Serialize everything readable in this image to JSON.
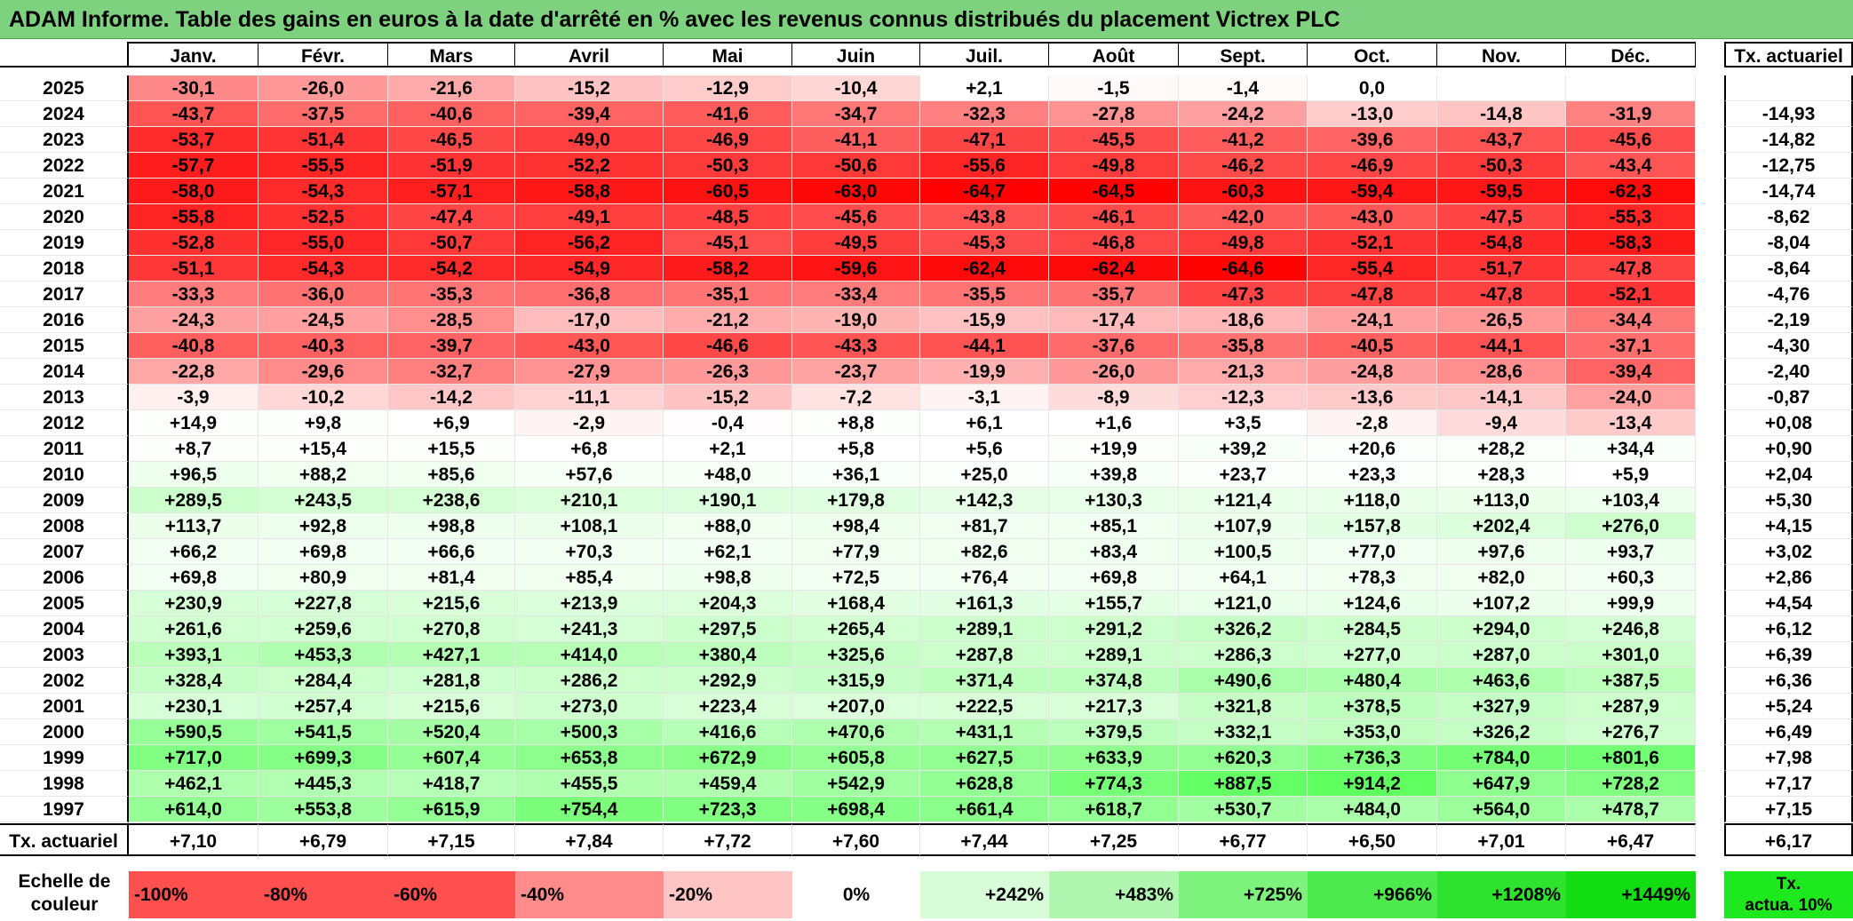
{
  "title": "ADAM Informe. Table des gains en euros à la date d'arrêté en % avec les revenus connus distribués du placement Victrex PLC",
  "months": [
    "Janv.",
    "Févr.",
    "Mars",
    "Avril",
    "Mai",
    "Juin",
    "Juil.",
    "Août",
    "Sept.",
    "Oct.",
    "Nov.",
    "Déc."
  ],
  "tx_header": "Tx. actuariel",
  "rows": [
    {
      "year": "2025",
      "values": [
        "-30,1",
        "-26,0",
        "-21,6",
        "-15,2",
        "-12,9",
        "-10,4",
        "+2,1",
        "-1,5",
        "-1,4",
        "0,0",
        "",
        ""
      ],
      "tx": ""
    },
    {
      "year": "2024",
      "values": [
        "-43,7",
        "-37,5",
        "-40,6",
        "-39,4",
        "-41,6",
        "-34,7",
        "-32,3",
        "-27,8",
        "-24,2",
        "-13,0",
        "-14,8",
        "-31,9"
      ],
      "tx": "-14,93"
    },
    {
      "year": "2023",
      "values": [
        "-53,7",
        "-51,4",
        "-46,5",
        "-49,0",
        "-46,9",
        "-41,1",
        "-47,1",
        "-45,5",
        "-41,2",
        "-39,6",
        "-43,7",
        "-45,6"
      ],
      "tx": "-14,82"
    },
    {
      "year": "2022",
      "values": [
        "-57,7",
        "-55,5",
        "-51,9",
        "-52,2",
        "-50,3",
        "-50,6",
        "-55,6",
        "-49,8",
        "-46,2",
        "-46,9",
        "-50,3",
        "-43,4"
      ],
      "tx": "-12,75"
    },
    {
      "year": "2021",
      "values": [
        "-58,0",
        "-54,3",
        "-57,1",
        "-58,8",
        "-60,5",
        "-63,0",
        "-64,7",
        "-64,5",
        "-60,3",
        "-59,4",
        "-59,5",
        "-62,3"
      ],
      "tx": "-14,74"
    },
    {
      "year": "2020",
      "values": [
        "-55,8",
        "-52,5",
        "-47,4",
        "-49,1",
        "-48,5",
        "-45,6",
        "-43,8",
        "-46,1",
        "-42,0",
        "-43,0",
        "-47,5",
        "-55,3"
      ],
      "tx": "-8,62"
    },
    {
      "year": "2019",
      "values": [
        "-52,8",
        "-55,0",
        "-50,7",
        "-56,2",
        "-45,1",
        "-49,5",
        "-45,3",
        "-46,8",
        "-49,8",
        "-52,1",
        "-54,8",
        "-58,3"
      ],
      "tx": "-8,04"
    },
    {
      "year": "2018",
      "values": [
        "-51,1",
        "-54,3",
        "-54,2",
        "-54,9",
        "-58,2",
        "-59,6",
        "-62,4",
        "-62,4",
        "-64,6",
        "-55,4",
        "-51,7",
        "-47,8"
      ],
      "tx": "-8,64"
    },
    {
      "year": "2017",
      "values": [
        "-33,3",
        "-36,0",
        "-35,3",
        "-36,8",
        "-35,1",
        "-33,4",
        "-35,5",
        "-35,7",
        "-47,3",
        "-47,8",
        "-47,8",
        "-52,1"
      ],
      "tx": "-4,76"
    },
    {
      "year": "2016",
      "values": [
        "-24,3",
        "-24,5",
        "-28,5",
        "-17,0",
        "-21,2",
        "-19,0",
        "-15,9",
        "-17,4",
        "-18,6",
        "-24,1",
        "-26,5",
        "-34,4"
      ],
      "tx": "-2,19"
    },
    {
      "year": "2015",
      "values": [
        "-40,8",
        "-40,3",
        "-39,7",
        "-43,0",
        "-46,6",
        "-43,3",
        "-44,1",
        "-37,6",
        "-35,8",
        "-40,5",
        "-44,1",
        "-37,1"
      ],
      "tx": "-4,30"
    },
    {
      "year": "2014",
      "values": [
        "-22,8",
        "-29,6",
        "-32,7",
        "-27,9",
        "-26,3",
        "-23,7",
        "-19,9",
        "-26,0",
        "-21,3",
        "-24,8",
        "-28,6",
        "-39,4"
      ],
      "tx": "-2,40"
    },
    {
      "year": "2013",
      "values": [
        "-3,9",
        "-10,2",
        "-14,2",
        "-11,1",
        "-15,2",
        "-7,2",
        "-3,1",
        "-8,9",
        "-12,3",
        "-13,6",
        "-14,1",
        "-24,0"
      ],
      "tx": "-0,87"
    },
    {
      "year": "2012",
      "values": [
        "+14,9",
        "+9,8",
        "+6,9",
        "-2,9",
        "-0,4",
        "+8,8",
        "+6,1",
        "+1,6",
        "+3,5",
        "-2,8",
        "-9,4",
        "-13,4"
      ],
      "tx": "+0,08"
    },
    {
      "year": "2011",
      "values": [
        "+8,7",
        "+15,4",
        "+15,5",
        "+6,8",
        "+2,1",
        "+5,8",
        "+5,6",
        "+19,9",
        "+39,2",
        "+20,6",
        "+28,2",
        "+34,4"
      ],
      "tx": "+0,90"
    },
    {
      "year": "2010",
      "values": [
        "+96,5",
        "+88,2",
        "+85,6",
        "+57,6",
        "+48,0",
        "+36,1",
        "+25,0",
        "+39,8",
        "+23,7",
        "+23,3",
        "+28,3",
        "+5,9"
      ],
      "tx": "+2,04"
    },
    {
      "year": "2009",
      "values": [
        "+289,5",
        "+243,5",
        "+238,6",
        "+210,1",
        "+190,1",
        "+179,8",
        "+142,3",
        "+130,3",
        "+121,4",
        "+118,0",
        "+113,0",
        "+103,4"
      ],
      "tx": "+5,30"
    },
    {
      "year": "2008",
      "values": [
        "+113,7",
        "+92,8",
        "+98,8",
        "+108,1",
        "+88,0",
        "+98,4",
        "+81,7",
        "+85,1",
        "+107,9",
        "+157,8",
        "+202,4",
        "+276,0"
      ],
      "tx": "+4,15"
    },
    {
      "year": "2007",
      "values": [
        "+66,2",
        "+69,8",
        "+66,6",
        "+70,3",
        "+62,1",
        "+77,9",
        "+82,6",
        "+83,4",
        "+100,5",
        "+77,0",
        "+97,6",
        "+93,7"
      ],
      "tx": "+3,02"
    },
    {
      "year": "2006",
      "values": [
        "+69,8",
        "+80,9",
        "+81,4",
        "+85,4",
        "+98,8",
        "+72,5",
        "+76,4",
        "+69,8",
        "+64,1",
        "+78,3",
        "+82,0",
        "+60,3"
      ],
      "tx": "+2,86"
    },
    {
      "year": "2005",
      "values": [
        "+230,9",
        "+227,8",
        "+215,6",
        "+213,9",
        "+204,3",
        "+168,4",
        "+161,3",
        "+155,7",
        "+121,0",
        "+124,6",
        "+107,2",
        "+99,9"
      ],
      "tx": "+4,54"
    },
    {
      "year": "2004",
      "values": [
        "+261,6",
        "+259,6",
        "+270,8",
        "+241,3",
        "+297,5",
        "+265,4",
        "+289,1",
        "+291,2",
        "+326,2",
        "+284,5",
        "+294,0",
        "+246,8"
      ],
      "tx": "+6,12"
    },
    {
      "year": "2003",
      "values": [
        "+393,1",
        "+453,3",
        "+427,1",
        "+414,0",
        "+380,4",
        "+325,6",
        "+287,8",
        "+289,1",
        "+286,3",
        "+277,0",
        "+287,0",
        "+301,0"
      ],
      "tx": "+6,39"
    },
    {
      "year": "2002",
      "values": [
        "+328,4",
        "+284,4",
        "+281,8",
        "+286,2",
        "+292,9",
        "+315,9",
        "+371,4",
        "+374,8",
        "+490,6",
        "+480,4",
        "+463,6",
        "+387,5"
      ],
      "tx": "+6,36"
    },
    {
      "year": "2001",
      "values": [
        "+230,1",
        "+257,4",
        "+215,6",
        "+273,0",
        "+223,4",
        "+207,0",
        "+222,5",
        "+217,3",
        "+321,8",
        "+378,5",
        "+327,9",
        "+287,9"
      ],
      "tx": "+5,24"
    },
    {
      "year": "2000",
      "values": [
        "+590,5",
        "+541,5",
        "+520,4",
        "+500,3",
        "+416,6",
        "+470,6",
        "+431,1",
        "+379,5",
        "+332,1",
        "+353,0",
        "+326,2",
        "+276,7"
      ],
      "tx": "+6,49"
    },
    {
      "year": "1999",
      "values": [
        "+717,0",
        "+699,3",
        "+607,4",
        "+653,8",
        "+672,9",
        "+605,8",
        "+627,5",
        "+633,9",
        "+620,3",
        "+736,3",
        "+784,0",
        "+801,6"
      ],
      "tx": "+7,98"
    },
    {
      "year": "1998",
      "values": [
        "+462,1",
        "+445,3",
        "+418,7",
        "+455,5",
        "+459,4",
        "+542,9",
        "+628,8",
        "+774,3",
        "+887,5",
        "+914,2",
        "+647,9",
        "+728,2"
      ],
      "tx": "+7,17"
    },
    {
      "year": "1997",
      "values": [
        "+614,0",
        "+553,8",
        "+615,9",
        "+754,4",
        "+723,3",
        "+698,4",
        "+661,4",
        "+618,7",
        "+530,7",
        "+484,0",
        "+564,0",
        "+478,7"
      ],
      "tx": "+7,15"
    }
  ],
  "totals": {
    "label": "Tx. actuariel",
    "values": [
      "+7,10",
      "+6,79",
      "+7,15",
      "+7,84",
      "+7,72",
      "+7,60",
      "+7,44",
      "+7,25",
      "+6,77",
      "+6,50",
      "+7,01",
      "+6,47"
    ],
    "tx": "+6,17"
  },
  "legend": {
    "label_line1": "Echelle de",
    "label_line2": "couleur",
    "stops": [
      {
        "label": "-100%",
        "color": "#ff4f4f",
        "align": "left"
      },
      {
        "label": "-80%",
        "color": "#ff4f4f",
        "align": "left"
      },
      {
        "label": "-60%",
        "color": "#ff4f4f",
        "align": "left"
      },
      {
        "label": "-40%",
        "color": "#ff8b8b",
        "align": "left"
      },
      {
        "label": "-20%",
        "color": "#ffc4c4",
        "align": "left"
      },
      {
        "label": "0%",
        "color": "#ffffff",
        "align": "center"
      },
      {
        "label": "+242%",
        "color": "#d8fbd8",
        "align": "right"
      },
      {
        "label": "+483%",
        "color": "#b0f5b0",
        "align": "right"
      },
      {
        "label": "+725%",
        "color": "#7df27d",
        "align": "right"
      },
      {
        "label": "+966%",
        "color": "#4cea4c",
        "align": "right"
      },
      {
        "label": "+1208%",
        "color": "#2de32d",
        "align": "right"
      },
      {
        "label": "+1449%",
        "color": "#12dd12",
        "align": "right"
      }
    ],
    "tx_line1": "Tx.",
    "tx_line2": "actua. 10%"
  }
}
